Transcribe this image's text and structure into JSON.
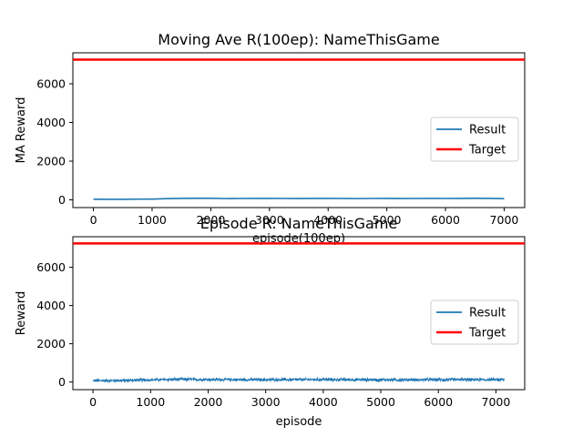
{
  "chart_data": [
    {
      "type": "line",
      "title": "Moving Ave R(100ep): NameThisGame",
      "xlabel": "episode(100ep)",
      "ylabel": "MA Reward",
      "xlim": [
        -350,
        7350
      ],
      "ylim": [
        -400,
        7600
      ],
      "xticks": [
        0,
        1000,
        2000,
        3000,
        4000,
        5000,
        6000,
        7000
      ],
      "yticks": [
        0,
        2000,
        4000,
        6000
      ],
      "legend_position": "center-right",
      "series": [
        {
          "name": "Result",
          "color": "#1f77b4",
          "x": [
            0,
            250,
            500,
            750,
            1000,
            1250,
            1500,
            1750,
            2000,
            2250,
            2500,
            2750,
            3000,
            3250,
            3500,
            3750,
            4000,
            4250,
            4500,
            4750,
            5000,
            5250,
            5500,
            5750,
            6000,
            6250,
            6500,
            6750,
            7000
          ],
          "y": [
            30,
            25,
            28,
            35,
            40,
            60,
            75,
            80,
            78,
            65,
            70,
            72,
            75,
            70,
            68,
            72,
            75,
            70,
            65,
            70,
            72,
            68,
            70,
            72,
            70,
            74,
            78,
            75,
            60
          ]
        },
        {
          "name": "Target",
          "color": "#ff0000",
          "constant": 7250
        }
      ]
    },
    {
      "type": "line",
      "title": "Episode R: NameThisGame",
      "xlabel": "episode",
      "ylabel": "Reward",
      "xlim": [
        -350,
        7500
      ],
      "ylim": [
        -400,
        7600
      ],
      "xticks": [
        0,
        1000,
        2000,
        3000,
        4000,
        5000,
        6000,
        7000
      ],
      "yticks": [
        0,
        2000,
        4000,
        6000
      ],
      "legend_position": "center-right",
      "series": [
        {
          "name": "Result",
          "color": "#1f77b4",
          "x_range": [
            0,
            7150
          ],
          "level": [
            [
              0,
              70
            ],
            [
              500,
              80
            ],
            [
              1000,
              110
            ],
            [
              1500,
              140
            ],
            [
              2000,
              130
            ],
            [
              3000,
              120
            ],
            [
              4000,
              130
            ],
            [
              5000,
              115
            ],
            [
              6000,
              120
            ],
            [
              7150,
              125
            ]
          ],
          "amplitude": 90
        },
        {
          "name": "Target",
          "color": "#ff0000",
          "constant": 7250
        }
      ]
    }
  ]
}
